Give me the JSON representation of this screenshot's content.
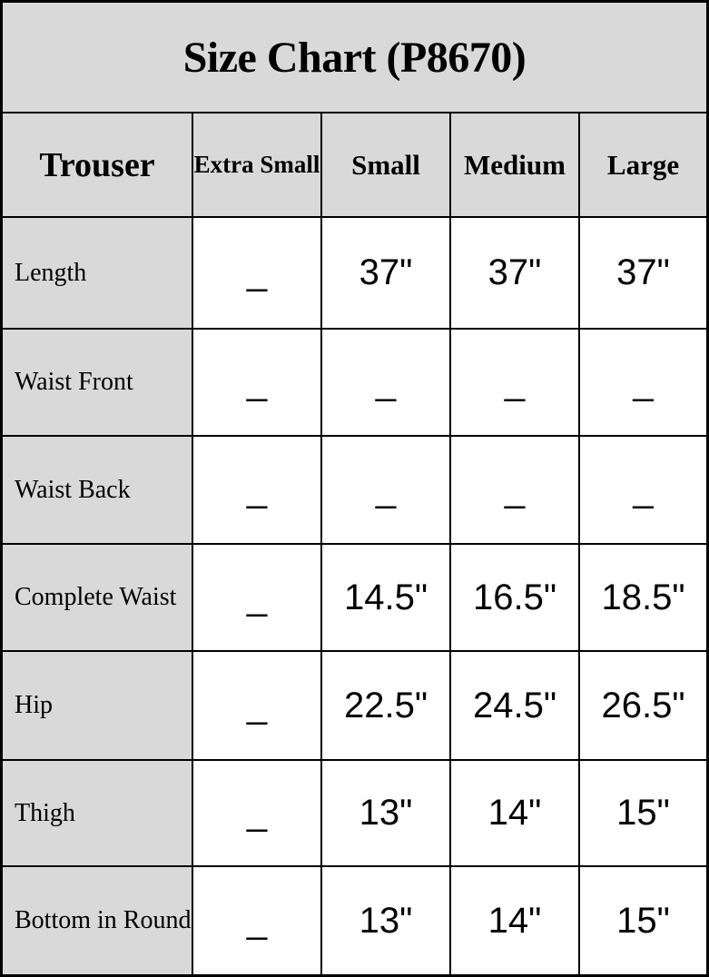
{
  "title": "Size Chart (P8670)",
  "colors": {
    "header_bg": "#d9d9d9",
    "cell_bg": "#ffffff",
    "border": "#000000",
    "text": "#000000"
  },
  "table": {
    "columns": [
      "Trouser",
      "Extra Small",
      "Small",
      "Medium",
      "Large"
    ],
    "rows": [
      {
        "label": "Length",
        "values": [
          "_",
          "37\"",
          "37\"",
          "37\""
        ]
      },
      {
        "label": "Waist Front",
        "values": [
          "_",
          "_",
          "_",
          "_"
        ]
      },
      {
        "label": "Waist Back",
        "values": [
          "_",
          "_",
          "_",
          "_"
        ]
      },
      {
        "label": "Complete Waist",
        "values": [
          "_",
          "14.5\"",
          "16.5\"",
          "18.5\""
        ]
      },
      {
        "label": "Hip",
        "values": [
          "_",
          "22.5\"",
          "24.5\"",
          "26.5\""
        ]
      },
      {
        "label": "Thigh",
        "values": [
          "_",
          "13\"",
          "14\"",
          "15\""
        ]
      },
      {
        "label": "Bottom in Round",
        "values": [
          "_",
          "13\"",
          "14\"",
          "15\""
        ]
      }
    ]
  }
}
